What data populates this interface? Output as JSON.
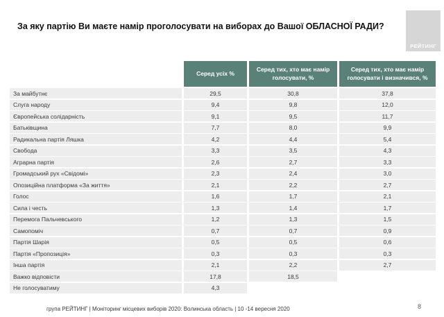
{
  "slide": {
    "title": "За яку партію Ви маєте намір проголосувати на виборах до Вашої ОБЛАСНОЇ РАДИ?",
    "logo_text": "РЕЙТИНГ",
    "footer": "група РЕЙТИНГ  | Моніторинг місцевих виборів 2020: Волинська область | 10 -14 вересня 2020",
    "page_number": "8"
  },
  "colors": {
    "header_bg": "#5a8178",
    "row_bg": "#ededed",
    "logo_bg": "#d6d6d6"
  },
  "table": {
    "columns": [
      "Серед усіх %",
      "Серед тих, хто має намір голосувати, %",
      "Серед тих, хто має намір голосувати і визначився, %"
    ],
    "rows": [
      {
        "label": "За майбутнє",
        "values": [
          "29,5",
          "30,8",
          "37,8"
        ]
      },
      {
        "label": "Слуга народу",
        "values": [
          "9,4",
          "9,8",
          "12,0"
        ]
      },
      {
        "label": "Європейська солідарність",
        "values": [
          "9,1",
          "9,5",
          "11,7"
        ]
      },
      {
        "label": "Батьківщина",
        "values": [
          "7,7",
          "8,0",
          "9,9"
        ]
      },
      {
        "label": "Радикальна партія Ляшка",
        "values": [
          "4,2",
          "4,4",
          "5,4"
        ]
      },
      {
        "label": "Свобода",
        "values": [
          "3,3",
          "3,5",
          "4,3"
        ]
      },
      {
        "label": "Аграрна партія",
        "values": [
          "2,6",
          "2,7",
          "3,3"
        ]
      },
      {
        "label": "Громадський рух «Свідомі»",
        "values": [
          "2,3",
          "2,4",
          "3,0"
        ]
      },
      {
        "label": "Опозиційна платформа «За життя»",
        "values": [
          "2,1",
          "2,2",
          "2,7"
        ]
      },
      {
        "label": "Голос",
        "values": [
          "1,6",
          "1,7",
          "2,1"
        ]
      },
      {
        "label": "Сила і честь",
        "values": [
          "1,3",
          "1,4",
          "1,7"
        ]
      },
      {
        "label": "Перемога Пальчевського",
        "values": [
          "1,2",
          "1,3",
          "1,5"
        ]
      },
      {
        "label": "Самопоміч",
        "values": [
          "0,7",
          "0,7",
          "0,9"
        ]
      },
      {
        "label": "Партія Шарія",
        "values": [
          "0,5",
          "0,5",
          "0,6"
        ]
      },
      {
        "label": "Партія «Пропозиція»",
        "values": [
          "0,3",
          "0,3",
          "0,3"
        ]
      },
      {
        "label": "Інша партія",
        "values": [
          "2,1",
          "2,2",
          "2,7"
        ]
      },
      {
        "label": "Важко відповісти",
        "values": [
          "17,8",
          "18,5",
          ""
        ]
      },
      {
        "label": "Не голосуватиму",
        "values": [
          "4,3",
          "",
          ""
        ]
      }
    ]
  },
  "chart_data": {
    "type": "table",
    "title": "За яку партію Ви маєте намір проголосувати на виборах до Вашої ОБЛАСНОЇ РАДИ?",
    "columns": [
      "Серед усіх %",
      "Серед тих, хто має намір голосувати, %",
      "Серед тих, хто має намір голосувати і визначився, %"
    ],
    "rows": [
      {
        "label": "За майбутнє",
        "values": [
          29.5,
          30.8,
          37.8
        ]
      },
      {
        "label": "Слуга народу",
        "values": [
          9.4,
          9.8,
          12.0
        ]
      },
      {
        "label": "Європейська солідарність",
        "values": [
          9.1,
          9.5,
          11.7
        ]
      },
      {
        "label": "Батьківщина",
        "values": [
          7.7,
          8.0,
          9.9
        ]
      },
      {
        "label": "Радикальна партія Ляшка",
        "values": [
          4.2,
          4.4,
          5.4
        ]
      },
      {
        "label": "Свобода",
        "values": [
          3.3,
          3.5,
          4.3
        ]
      },
      {
        "label": "Аграрна партія",
        "values": [
          2.6,
          2.7,
          3.3
        ]
      },
      {
        "label": "Громадський рух «Свідомі»",
        "values": [
          2.3,
          2.4,
          3.0
        ]
      },
      {
        "label": "Опозиційна платформа «За життя»",
        "values": [
          2.1,
          2.2,
          2.7
        ]
      },
      {
        "label": "Голос",
        "values": [
          1.6,
          1.7,
          2.1
        ]
      },
      {
        "label": "Сила і честь",
        "values": [
          1.3,
          1.4,
          1.7
        ]
      },
      {
        "label": "Перемога Пальчевського",
        "values": [
          1.2,
          1.3,
          1.5
        ]
      },
      {
        "label": "Самопоміч",
        "values": [
          0.7,
          0.7,
          0.9
        ]
      },
      {
        "label": "Партія Шарія",
        "values": [
          0.5,
          0.5,
          0.6
        ]
      },
      {
        "label": "Партія «Пропозиція»",
        "values": [
          0.3,
          0.3,
          0.3
        ]
      },
      {
        "label": "Інша партія",
        "values": [
          2.1,
          2.2,
          2.7
        ]
      },
      {
        "label": "Важко відповісти",
        "values": [
          17.8,
          18.5,
          null
        ]
      },
      {
        "label": "Не голосуватиму",
        "values": [
          4.3,
          null,
          null
        ]
      }
    ]
  }
}
